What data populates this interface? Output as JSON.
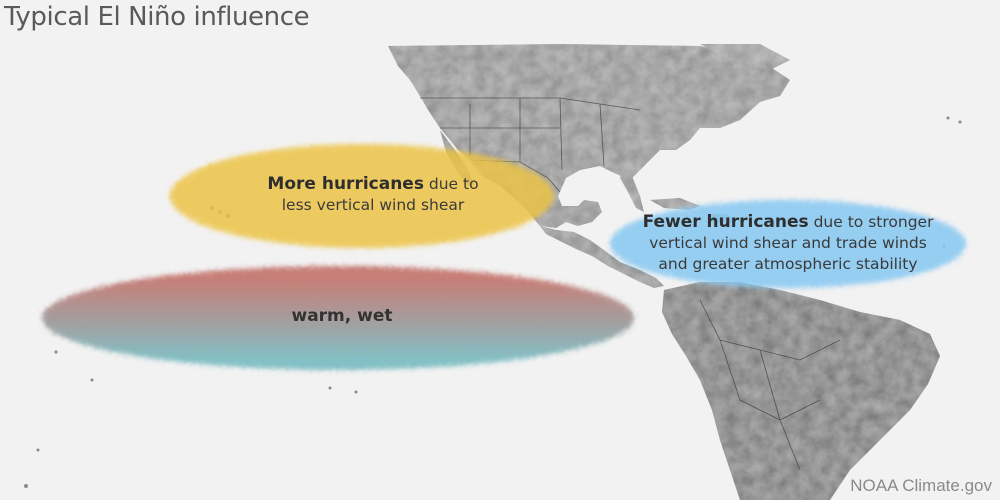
{
  "title": "Typical El Niño influence",
  "credit": "NOAA Climate.gov",
  "regions": {
    "more_hurricanes": {
      "bold": "More hurricanes",
      "rest_line1": " due to",
      "line2": "less vertical wind shear",
      "color": "#edc447"
    },
    "fewer_hurricanes": {
      "bold": "Fewer hurricanes",
      "rest_line1": " due to stronger",
      "line2": "vertical wind shear and trade winds",
      "line3": "and greater atmospheric stability",
      "color": "#86c8f2"
    },
    "warm_wet": {
      "label": "warm, wet",
      "color_top": "#c06a62",
      "color_bottom": "#6fb7bd"
    }
  },
  "colors": {
    "background": "#f2f2f2",
    "land": "#9a9a9a",
    "land_dark": "#6e6e6e",
    "borders": "#3c3c3c"
  }
}
